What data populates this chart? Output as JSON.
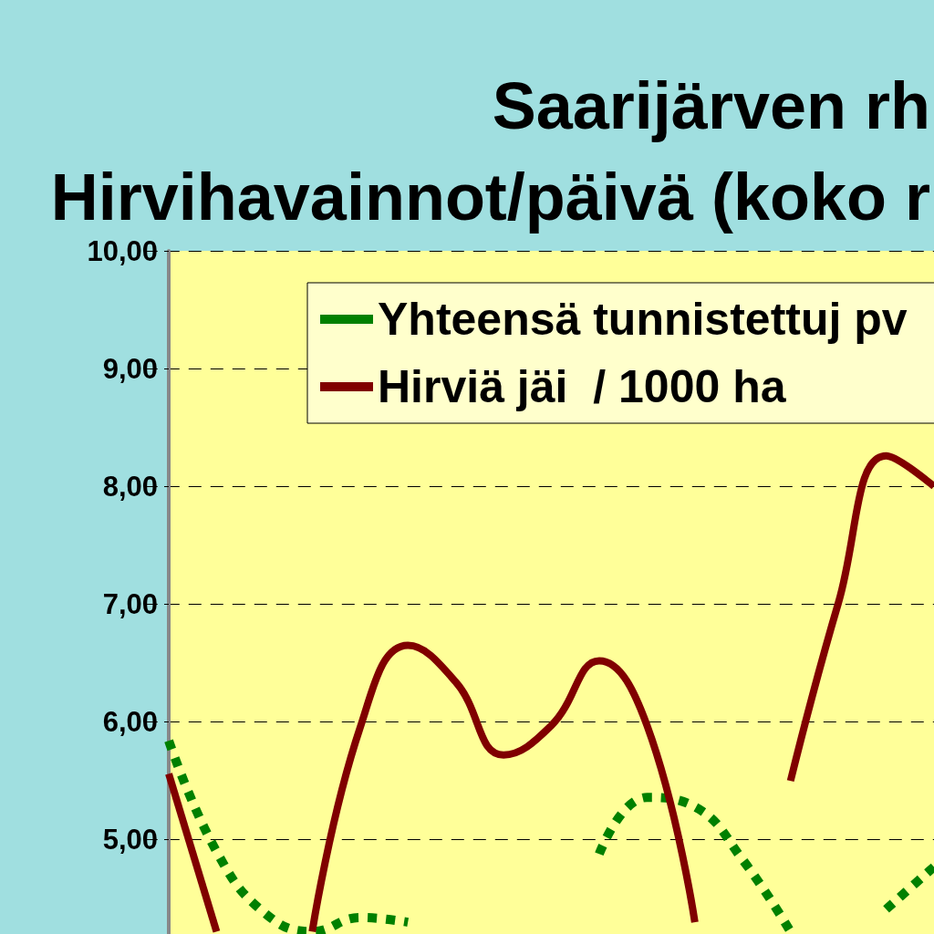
{
  "chart_data": {
    "type": "line",
    "title": "Saarijärven rh\nHirvihavainnot/päivä (koko r",
    "categories": [
      null,
      null,
      null,
      null,
      null,
      null,
      null,
      null,
      null,
      null,
      null,
      null,
      null,
      null,
      null,
      null,
      null
    ],
    "series": [
      {
        "name": "Yhteensä tunnistettuj pv",
        "color": "#008000",
        "line_style": "dotted",
        "values": [
          5.84,
          4.9,
          4.38,
          4.22,
          4.34,
          4.3,
          null,
          null,
          null,
          4.88,
          5.36,
          5.28,
          4.83,
          4.22,
          null,
          4.41,
          4.77
        ]
      },
      {
        "name": "Hirviä jäi  / 1000 ha",
        "color": "#800000",
        "line_style": "solid",
        "values": [
          5.56,
          4.22,
          null,
          4.22,
          5.95,
          6.65,
          6.34,
          5.72,
          5.97,
          6.52,
          5.97,
          4.3,
          null,
          5.5,
          7.01,
          8.26,
          8.0
        ]
      }
    ],
    "ylim": [
      4.2,
      10
    ],
    "yticks": [
      {
        "value": 5,
        "label": "5,00"
      },
      {
        "value": 6,
        "label": "6,00"
      },
      {
        "value": 7,
        "label": "7,00"
      },
      {
        "value": 8,
        "label": "8,00"
      },
      {
        "value": 9,
        "label": "9,00"
      },
      {
        "value": 10,
        "label": "10,00"
      }
    ],
    "grid": "y",
    "legend": "top right",
    "marker": "none",
    "tick_labels": "y"
  }
}
